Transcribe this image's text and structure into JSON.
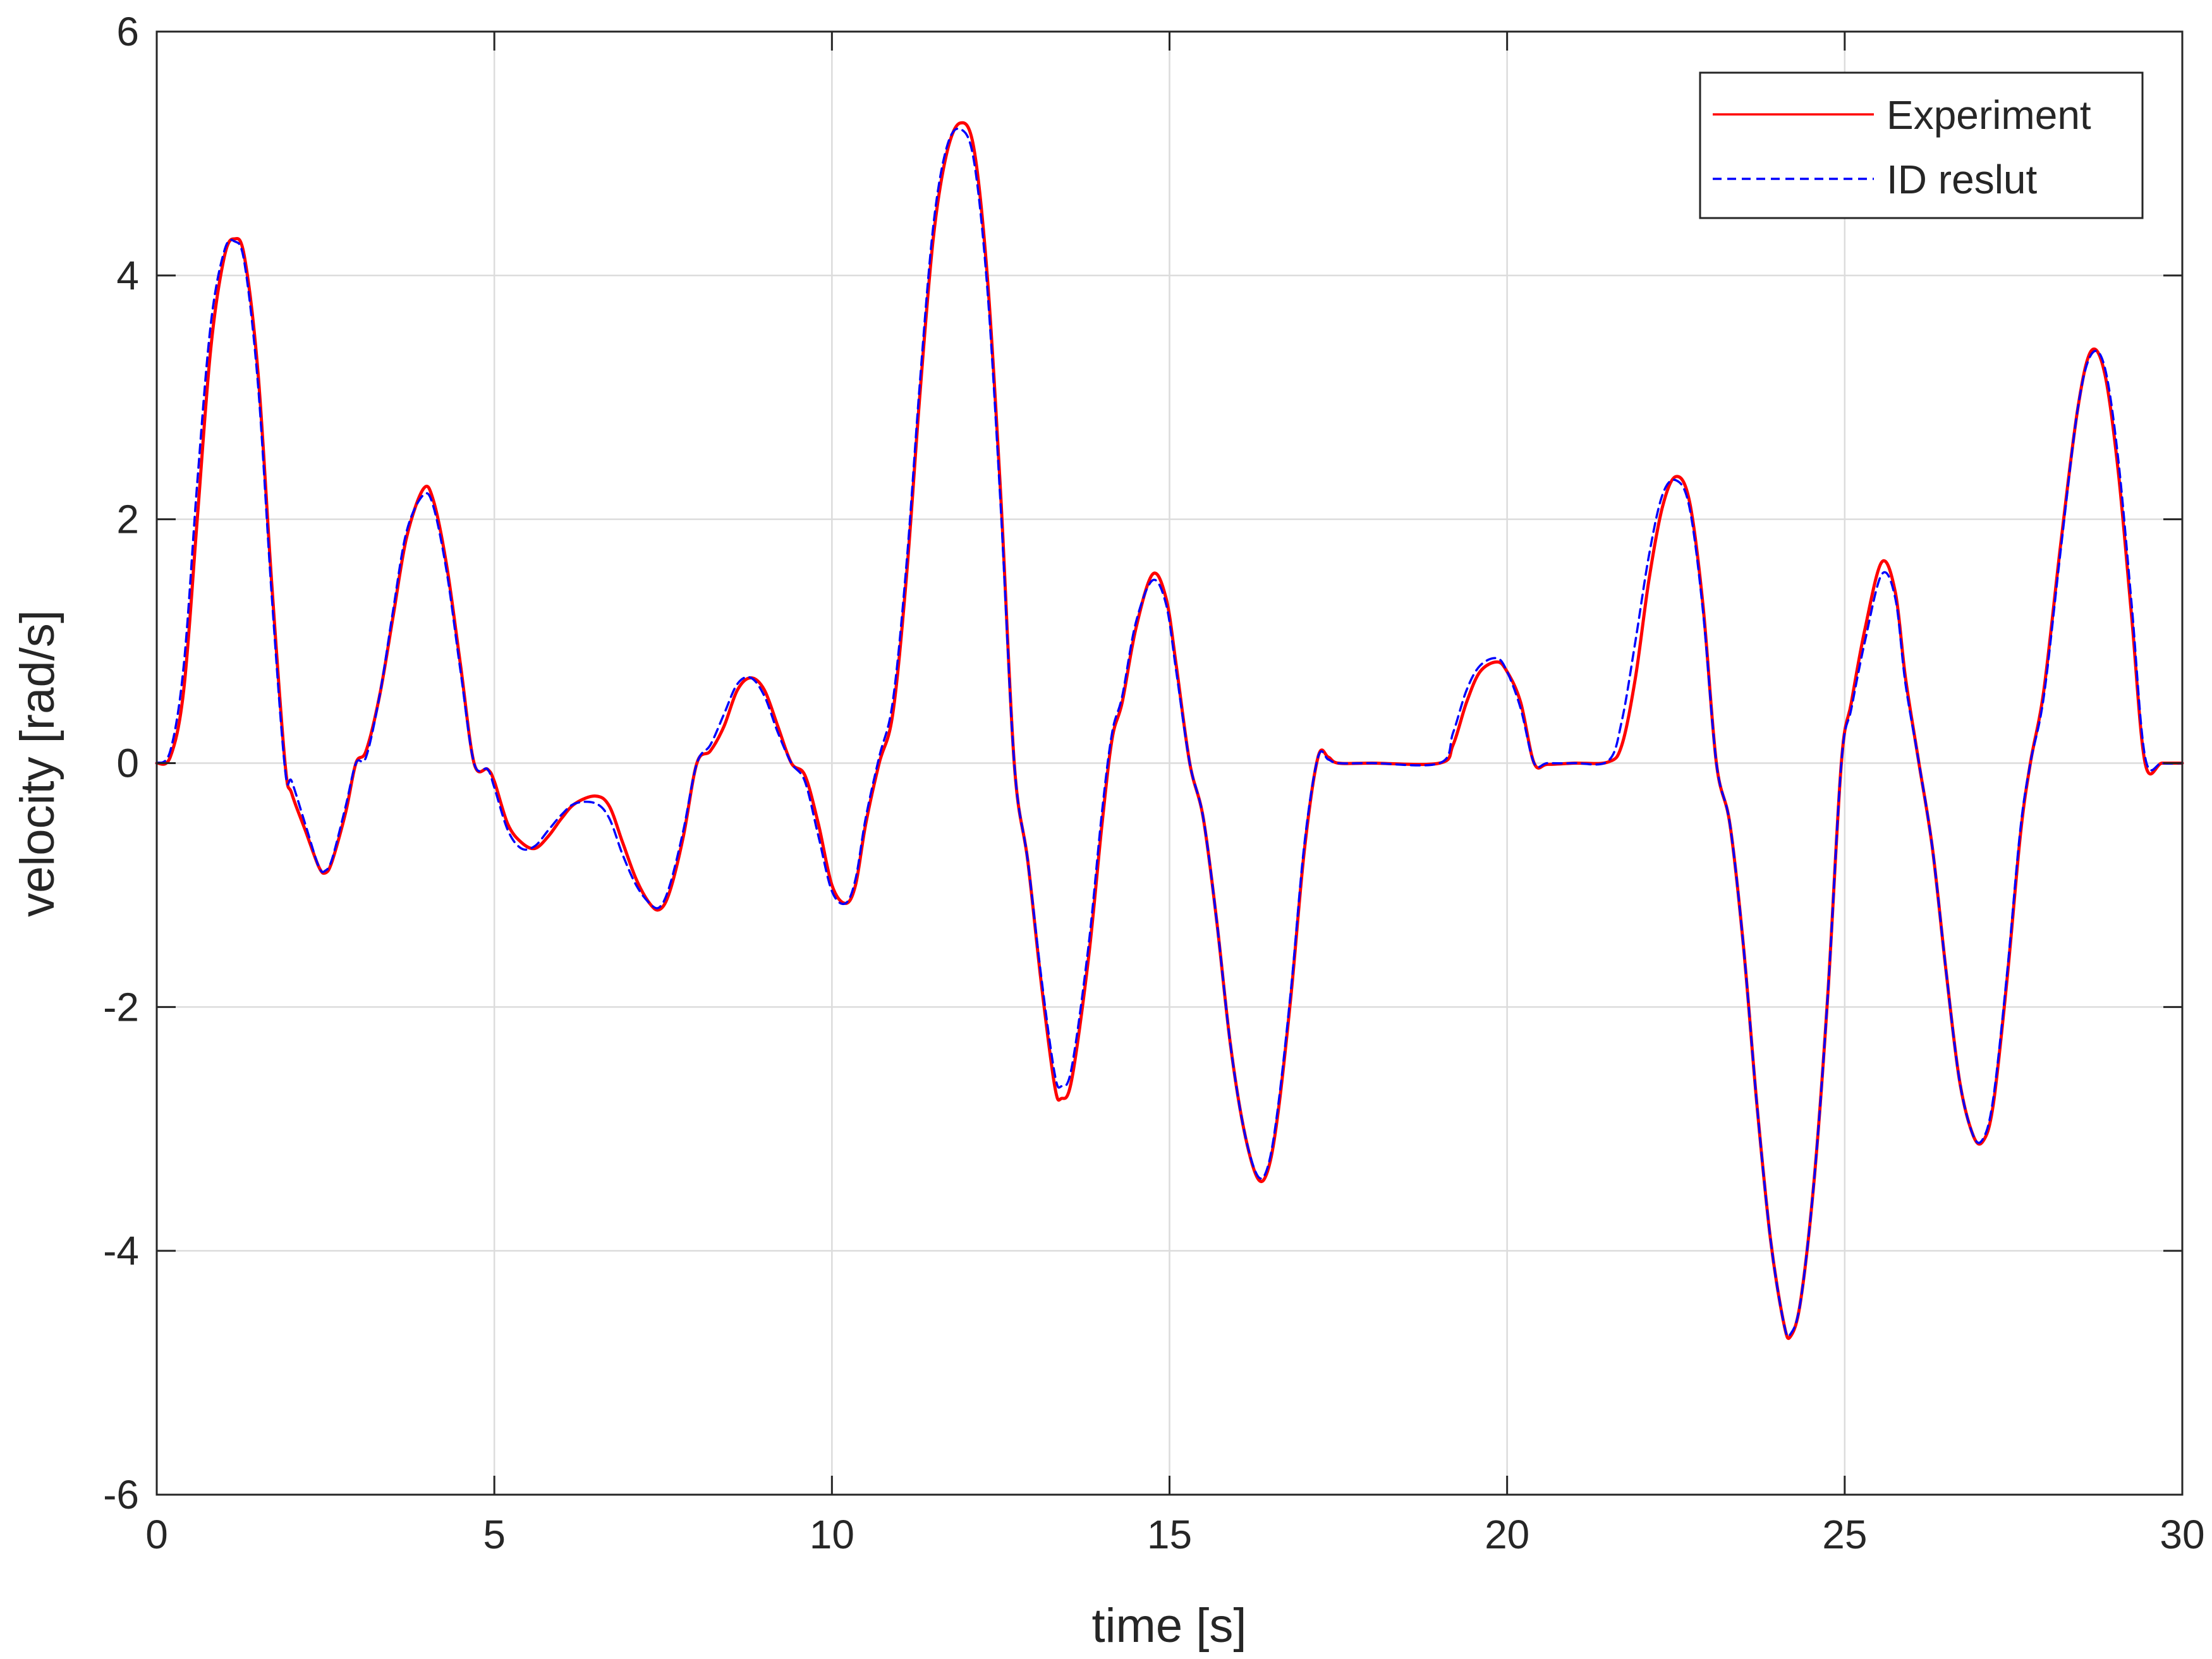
{
  "chart_data": {
    "type": "line",
    "title": "",
    "xlabel": "time [s]",
    "ylabel": "velocity [rad/s]",
    "xlim": [
      0,
      30
    ],
    "ylim": [
      -6,
      6
    ],
    "xticks": [
      0,
      5,
      10,
      15,
      20,
      25,
      30
    ],
    "yticks": [
      -6,
      -4,
      -2,
      0,
      2,
      4,
      6
    ],
    "xtick_labels": [
      "0",
      "5",
      "10",
      "15",
      "20",
      "25",
      "30"
    ],
    "ytick_labels": [
      "-6",
      "-4",
      "-2",
      "0",
      "2",
      "4",
      "6"
    ],
    "grid": true,
    "legend_position": "top-right",
    "series": [
      {
        "name": "Experiment",
        "color": "#ff0000",
        "style": "solid",
        "points": [
          [
            0,
            0
          ],
          [
            0.2,
            0.05
          ],
          [
            0.4,
            0.6
          ],
          [
            0.6,
            2.0
          ],
          [
            0.8,
            3.4
          ],
          [
            1.0,
            4.15
          ],
          [
            1.15,
            4.3
          ],
          [
            1.3,
            4.15
          ],
          [
            1.5,
            3.2
          ],
          [
            1.7,
            1.5
          ],
          [
            1.9,
            0.0
          ],
          [
            2.0,
            -0.25
          ],
          [
            2.2,
            -0.55
          ],
          [
            2.4,
            -0.85
          ],
          [
            2.5,
            -0.9
          ],
          [
            2.6,
            -0.8
          ],
          [
            2.8,
            -0.4
          ],
          [
            2.95,
            0.0
          ],
          [
            3.1,
            0.1
          ],
          [
            3.3,
            0.55
          ],
          [
            3.5,
            1.2
          ],
          [
            3.7,
            1.85
          ],
          [
            3.95,
            2.25
          ],
          [
            4.1,
            2.15
          ],
          [
            4.3,
            1.6
          ],
          [
            4.5,
            0.8
          ],
          [
            4.7,
            0.0
          ],
          [
            4.9,
            -0.05
          ],
          [
            5.0,
            -0.15
          ],
          [
            5.2,
            -0.5
          ],
          [
            5.4,
            -0.65
          ],
          [
            5.6,
            -0.7
          ],
          [
            5.8,
            -0.6
          ],
          [
            6.0,
            -0.45
          ],
          [
            6.2,
            -0.33
          ],
          [
            6.5,
            -0.27
          ],
          [
            6.7,
            -0.35
          ],
          [
            6.9,
            -0.65
          ],
          [
            7.1,
            -0.95
          ],
          [
            7.3,
            -1.15
          ],
          [
            7.45,
            -1.2
          ],
          [
            7.6,
            -1.05
          ],
          [
            7.8,
            -0.6
          ],
          [
            8.0,
            0.0
          ],
          [
            8.2,
            0.1
          ],
          [
            8.4,
            0.3
          ],
          [
            8.6,
            0.6
          ],
          [
            8.8,
            0.7
          ],
          [
            9.0,
            0.6
          ],
          [
            9.2,
            0.3
          ],
          [
            9.4,
            0.0
          ],
          [
            9.6,
            -0.1
          ],
          [
            9.8,
            -0.5
          ],
          [
            10.0,
            -1.0
          ],
          [
            10.2,
            -1.15
          ],
          [
            10.35,
            -1.0
          ],
          [
            10.5,
            -0.5
          ],
          [
            10.7,
            0.0
          ],
          [
            10.9,
            0.4
          ],
          [
            11.1,
            1.5
          ],
          [
            11.3,
            3.0
          ],
          [
            11.5,
            4.3
          ],
          [
            11.7,
            5.0
          ],
          [
            11.9,
            5.25
          ],
          [
            12.1,
            5.05
          ],
          [
            12.3,
            4.0
          ],
          [
            12.5,
            2.2
          ],
          [
            12.7,
            0.0
          ],
          [
            12.9,
            -0.8
          ],
          [
            13.1,
            -1.8
          ],
          [
            13.3,
            -2.65
          ],
          [
            13.4,
            -2.75
          ],
          [
            13.55,
            -2.6
          ],
          [
            13.8,
            -1.6
          ],
          [
            14.0,
            -0.5
          ],
          [
            14.15,
            0.2
          ],
          [
            14.3,
            0.5
          ],
          [
            14.5,
            1.1
          ],
          [
            14.75,
            1.55
          ],
          [
            14.95,
            1.35
          ],
          [
            15.1,
            0.8
          ],
          [
            15.3,
            0.0
          ],
          [
            15.5,
            -0.45
          ],
          [
            15.7,
            -1.3
          ],
          [
            15.9,
            -2.3
          ],
          [
            16.1,
            -3.0
          ],
          [
            16.3,
            -3.4
          ],
          [
            16.45,
            -3.35
          ],
          [
            16.6,
            -2.9
          ],
          [
            16.8,
            -1.9
          ],
          [
            17.0,
            -0.7
          ],
          [
            17.2,
            0.05
          ],
          [
            17.35,
            0.05
          ],
          [
            17.5,
            0.0
          ],
          [
            18.0,
            0.0
          ],
          [
            19.0,
            0.0
          ],
          [
            19.2,
            0.15
          ],
          [
            19.4,
            0.5
          ],
          [
            19.6,
            0.75
          ],
          [
            19.85,
            0.83
          ],
          [
            20.0,
            0.75
          ],
          [
            20.2,
            0.5
          ],
          [
            20.4,
            0.0
          ],
          [
            20.6,
            -0.01
          ],
          [
            21.0,
            0.0
          ],
          [
            21.5,
            0.01
          ],
          [
            21.7,
            0.15
          ],
          [
            21.9,
            0.7
          ],
          [
            22.1,
            1.5
          ],
          [
            22.3,
            2.1
          ],
          [
            22.5,
            2.35
          ],
          [
            22.7,
            2.15
          ],
          [
            22.9,
            1.3
          ],
          [
            23.1,
            0.0
          ],
          [
            23.3,
            -0.5
          ],
          [
            23.5,
            -1.5
          ],
          [
            23.7,
            -2.8
          ],
          [
            23.9,
            -3.9
          ],
          [
            24.1,
            -4.6
          ],
          [
            24.2,
            -4.7
          ],
          [
            24.35,
            -4.4
          ],
          [
            24.55,
            -3.4
          ],
          [
            24.75,
            -1.9
          ],
          [
            24.95,
            0.0
          ],
          [
            25.1,
            0.5
          ],
          [
            25.3,
            1.1
          ],
          [
            25.55,
            1.65
          ],
          [
            25.75,
            1.4
          ],
          [
            25.9,
            0.7
          ],
          [
            26.1,
            0.0
          ],
          [
            26.3,
            -0.7
          ],
          [
            26.5,
            -1.7
          ],
          [
            26.7,
            -2.6
          ],
          [
            26.9,
            -3.05
          ],
          [
            27.05,
            -3.1
          ],
          [
            27.2,
            -2.8
          ],
          [
            27.4,
            -1.8
          ],
          [
            27.6,
            -0.6
          ],
          [
            27.75,
            0.0
          ],
          [
            27.95,
            0.6
          ],
          [
            28.2,
            1.8
          ],
          [
            28.45,
            2.9
          ],
          [
            28.65,
            3.38
          ],
          [
            28.85,
            3.2
          ],
          [
            29.05,
            2.4
          ],
          [
            29.25,
            1.2
          ],
          [
            29.45,
            0.0
          ],
          [
            29.7,
            0.0
          ],
          [
            30.0,
            0.0
          ]
        ]
      },
      {
        "name": "ID reslut",
        "color": "#0000ff",
        "style": "dashed",
        "points": [
          [
            0,
            0
          ],
          [
            0.2,
            0.1
          ],
          [
            0.4,
            0.8
          ],
          [
            0.6,
            2.3
          ],
          [
            0.8,
            3.6
          ],
          [
            1.0,
            4.2
          ],
          [
            1.15,
            4.28
          ],
          [
            1.3,
            4.1
          ],
          [
            1.5,
            3.1
          ],
          [
            1.7,
            1.4
          ],
          [
            1.9,
            -0.05
          ],
          [
            2.0,
            -0.15
          ],
          [
            2.2,
            -0.5
          ],
          [
            2.4,
            -0.85
          ],
          [
            2.5,
            -0.88
          ],
          [
            2.6,
            -0.78
          ],
          [
            2.8,
            -0.35
          ],
          [
            2.95,
            0.0
          ],
          [
            3.1,
            0.05
          ],
          [
            3.3,
            0.55
          ],
          [
            3.5,
            1.25
          ],
          [
            3.7,
            1.9
          ],
          [
            3.95,
            2.2
          ],
          [
            4.1,
            2.1
          ],
          [
            4.3,
            1.55
          ],
          [
            4.5,
            0.75
          ],
          [
            4.7,
            0.0
          ],
          [
            4.9,
            -0.05
          ],
          [
            5.0,
            -0.2
          ],
          [
            5.2,
            -0.55
          ],
          [
            5.4,
            -0.7
          ],
          [
            5.6,
            -0.68
          ],
          [
            5.8,
            -0.55
          ],
          [
            6.0,
            -0.42
          ],
          [
            6.2,
            -0.33
          ],
          [
            6.5,
            -0.33
          ],
          [
            6.7,
            -0.45
          ],
          [
            6.9,
            -0.75
          ],
          [
            7.1,
            -1.0
          ],
          [
            7.3,
            -1.15
          ],
          [
            7.45,
            -1.18
          ],
          [
            7.6,
            -1.0
          ],
          [
            7.8,
            -0.55
          ],
          [
            8.0,
            0.0
          ],
          [
            8.2,
            0.15
          ],
          [
            8.4,
            0.4
          ],
          [
            8.6,
            0.65
          ],
          [
            8.8,
            0.7
          ],
          [
            9.0,
            0.55
          ],
          [
            9.2,
            0.25
          ],
          [
            9.4,
            0.0
          ],
          [
            9.6,
            -0.15
          ],
          [
            9.8,
            -0.6
          ],
          [
            10.0,
            -1.05
          ],
          [
            10.2,
            -1.15
          ],
          [
            10.35,
            -0.95
          ],
          [
            10.5,
            -0.45
          ],
          [
            10.7,
            0.05
          ],
          [
            10.9,
            0.5
          ],
          [
            11.1,
            1.6
          ],
          [
            11.3,
            3.1
          ],
          [
            11.5,
            4.4
          ],
          [
            11.7,
            5.05
          ],
          [
            11.9,
            5.2
          ],
          [
            12.1,
            4.95
          ],
          [
            12.3,
            3.9
          ],
          [
            12.5,
            2.1
          ],
          [
            12.7,
            0.0
          ],
          [
            12.9,
            -0.8
          ],
          [
            13.1,
            -1.75
          ],
          [
            13.3,
            -2.55
          ],
          [
            13.4,
            -2.65
          ],
          [
            13.55,
            -2.5
          ],
          [
            13.8,
            -1.5
          ],
          [
            14.0,
            -0.4
          ],
          [
            14.15,
            0.25
          ],
          [
            14.3,
            0.55
          ],
          [
            14.5,
            1.15
          ],
          [
            14.75,
            1.5
          ],
          [
            14.95,
            1.3
          ],
          [
            15.1,
            0.75
          ],
          [
            15.3,
            0.0
          ],
          [
            15.5,
            -0.45
          ],
          [
            15.7,
            -1.3
          ],
          [
            15.9,
            -2.3
          ],
          [
            16.1,
            -3.0
          ],
          [
            16.3,
            -3.38
          ],
          [
            16.45,
            -3.32
          ],
          [
            16.6,
            -2.85
          ],
          [
            16.8,
            -1.85
          ],
          [
            17.0,
            -0.65
          ],
          [
            17.2,
            0.05
          ],
          [
            17.35,
            0.03
          ],
          [
            17.5,
            0.0
          ],
          [
            18.0,
            0.0
          ],
          [
            19.0,
            0.0
          ],
          [
            19.2,
            0.25
          ],
          [
            19.4,
            0.6
          ],
          [
            19.6,
            0.8
          ],
          [
            19.85,
            0.86
          ],
          [
            20.0,
            0.75
          ],
          [
            20.2,
            0.45
          ],
          [
            20.4,
            0.0
          ],
          [
            20.6,
            0.0
          ],
          [
            21.0,
            0.0
          ],
          [
            21.5,
            0.02
          ],
          [
            21.7,
            0.35
          ],
          [
            21.9,
            1.0
          ],
          [
            22.1,
            1.7
          ],
          [
            22.3,
            2.2
          ],
          [
            22.5,
            2.32
          ],
          [
            22.7,
            2.1
          ],
          [
            22.9,
            1.25
          ],
          [
            23.1,
            0.0
          ],
          [
            23.3,
            -0.5
          ],
          [
            23.5,
            -1.5
          ],
          [
            23.7,
            -2.8
          ],
          [
            23.9,
            -3.9
          ],
          [
            24.1,
            -4.6
          ],
          [
            24.2,
            -4.68
          ],
          [
            24.35,
            -4.4
          ],
          [
            24.55,
            -3.4
          ],
          [
            24.75,
            -1.9
          ],
          [
            24.95,
            0.0
          ],
          [
            25.1,
            0.45
          ],
          [
            25.3,
            1.0
          ],
          [
            25.55,
            1.55
          ],
          [
            25.75,
            1.35
          ],
          [
            25.9,
            0.65
          ],
          [
            26.1,
            0.0
          ],
          [
            26.3,
            -0.7
          ],
          [
            26.5,
            -1.7
          ],
          [
            26.7,
            -2.6
          ],
          [
            26.9,
            -3.05
          ],
          [
            27.05,
            -3.08
          ],
          [
            27.2,
            -2.75
          ],
          [
            27.4,
            -1.75
          ],
          [
            27.6,
            -0.55
          ],
          [
            27.75,
            0.0
          ],
          [
            27.95,
            0.55
          ],
          [
            28.2,
            1.75
          ],
          [
            28.45,
            2.9
          ],
          [
            28.65,
            3.35
          ],
          [
            28.85,
            3.25
          ],
          [
            29.05,
            2.5
          ],
          [
            29.25,
            1.3
          ],
          [
            29.45,
            0.05
          ],
          [
            29.7,
            0.0
          ],
          [
            30.0,
            0.0
          ]
        ]
      }
    ]
  }
}
